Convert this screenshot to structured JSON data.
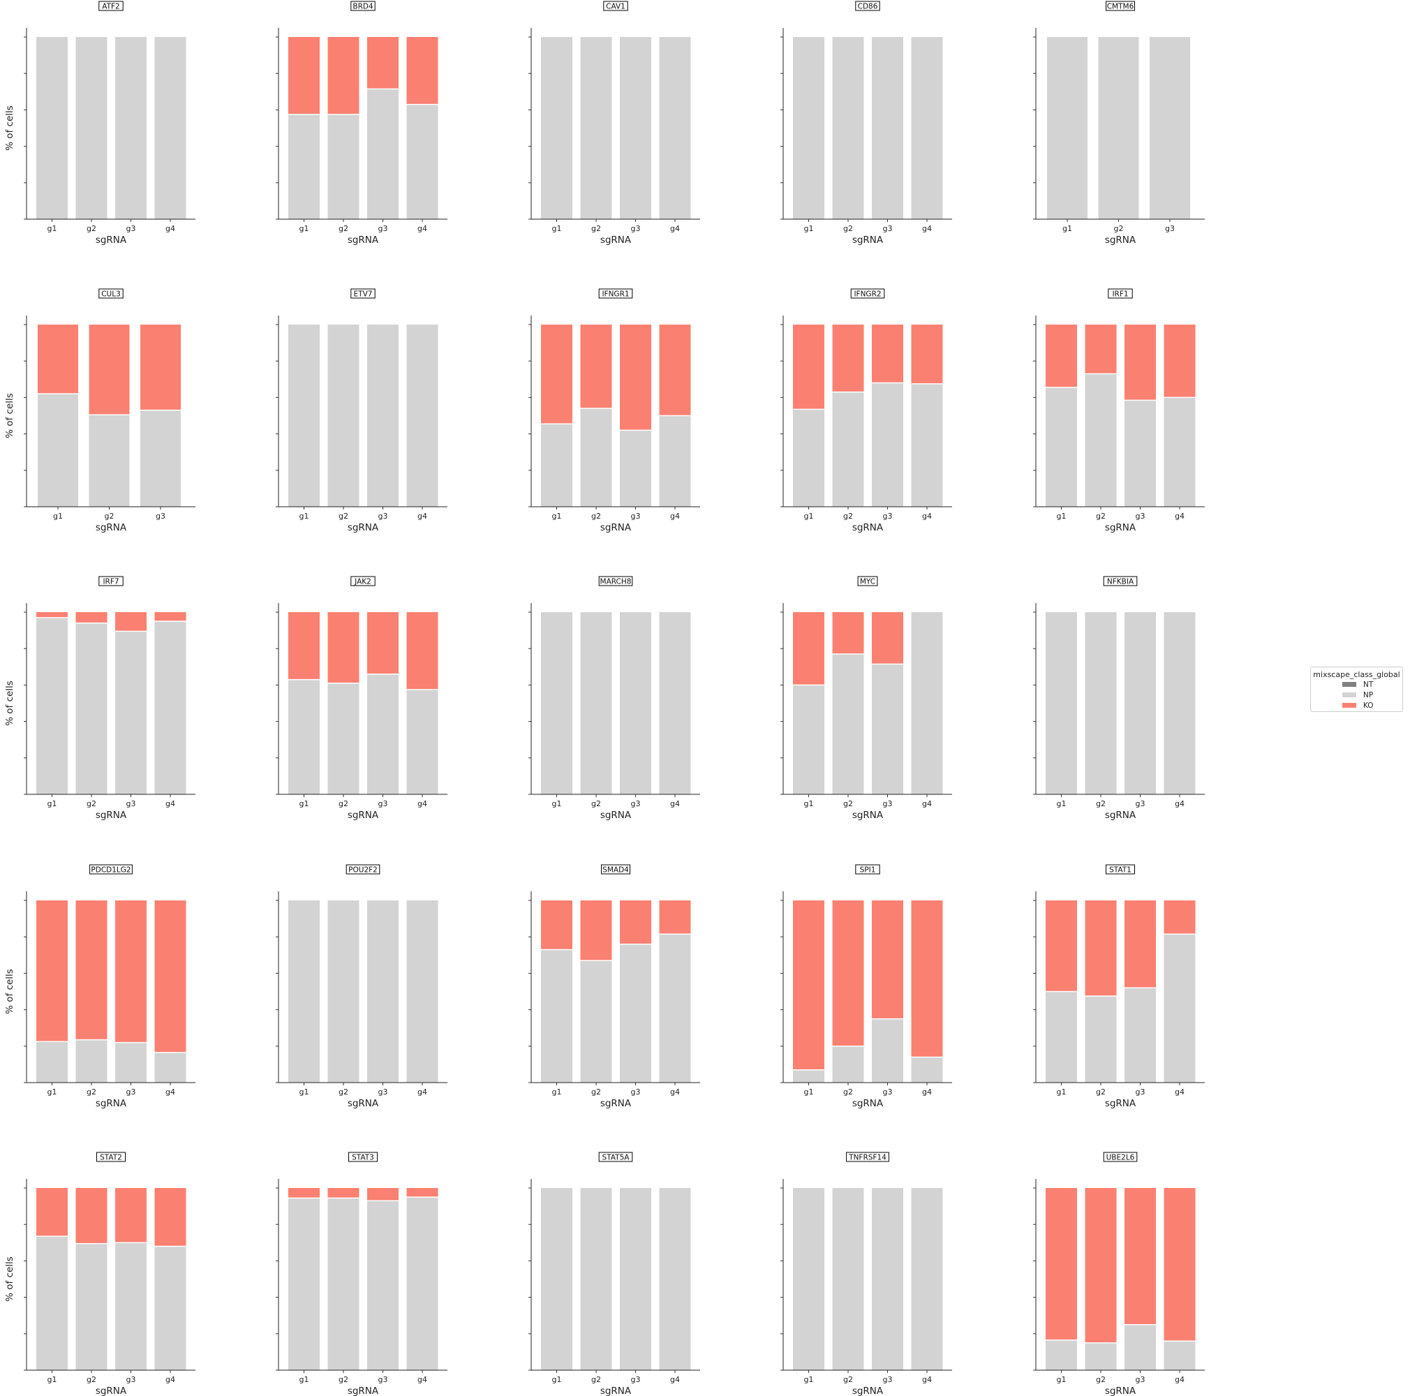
{
  "chart_data": {
    "type": "bar",
    "stacked": true,
    "layout": "5x5 grid of small multiples",
    "ylabel": "% of cells",
    "xlabel": "sgRNA",
    "ylim": [
      0,
      100
    ],
    "y_tick_labels": "hidden",
    "grid": false,
    "legend": {
      "title": "mixscape_class_global",
      "placement": "right, outside plots",
      "entries": [
        {
          "name": "NT",
          "color": "#808080"
        },
        {
          "name": "NP",
          "color": "#d3d3d3"
        },
        {
          "name": "KO",
          "color": "#fa8072"
        }
      ]
    },
    "panels": [
      {
        "title": "ATF2",
        "categories": [
          "g1",
          "g2",
          "g3",
          "g4"
        ],
        "np": [
          100,
          100,
          100,
          100
        ],
        "ko": [
          0,
          0,
          0,
          0
        ]
      },
      {
        "title": "BRD4",
        "categories": [
          "g1",
          "g2",
          "g3",
          "g4"
        ],
        "np": [
          57.5,
          57.5,
          71.5,
          63
        ],
        "ko": [
          42.5,
          42.5,
          28.5,
          37
        ]
      },
      {
        "title": "CAV1",
        "categories": [
          "g1",
          "g2",
          "g3",
          "g4"
        ],
        "np": [
          100,
          100,
          100,
          100
        ],
        "ko": [
          0,
          0,
          0,
          0
        ]
      },
      {
        "title": "CD86",
        "categories": [
          "g1",
          "g2",
          "g3",
          "g4"
        ],
        "np": [
          100,
          100,
          100,
          100
        ],
        "ko": [
          0,
          0,
          0,
          0
        ]
      },
      {
        "title": "CMTM6",
        "categories": [
          "g1",
          "g2",
          "g3"
        ],
        "np": [
          100,
          100,
          100
        ],
        "ko": [
          0,
          0,
          0
        ]
      },
      {
        "title": "CUL3",
        "categories": [
          "g1",
          "g2",
          "g3"
        ],
        "np": [
          62,
          50.5,
          53
        ],
        "ko": [
          38,
          49.5,
          47
        ]
      },
      {
        "title": "ETV7",
        "categories": [
          "g1",
          "g2",
          "g3",
          "g4"
        ],
        "np": [
          100,
          100,
          100,
          100
        ],
        "ko": [
          0,
          0,
          0,
          0
        ]
      },
      {
        "title": "IFNGR1",
        "categories": [
          "g1",
          "g2",
          "g3",
          "g4"
        ],
        "np": [
          45.5,
          54,
          42,
          50
        ],
        "ko": [
          54.5,
          46,
          58,
          50
        ]
      },
      {
        "title": "IFNGR2",
        "categories": [
          "g1",
          "g2",
          "g3",
          "g4"
        ],
        "np": [
          53.5,
          63,
          68,
          67.5
        ],
        "ko": [
          46.5,
          37,
          32,
          32.5
        ]
      },
      {
        "title": "IRF1",
        "categories": [
          "g1",
          "g2",
          "g3",
          "g4"
        ],
        "np": [
          65.5,
          73,
          58.5,
          60
        ],
        "ko": [
          34.5,
          27,
          41.5,
          40
        ]
      },
      {
        "title": "IRF7",
        "categories": [
          "g1",
          "g2",
          "g3",
          "g4"
        ],
        "np": [
          97,
          94,
          89.5,
          95
        ],
        "ko": [
          3,
          6,
          10.5,
          5
        ]
      },
      {
        "title": "JAK2",
        "categories": [
          "g1",
          "g2",
          "g3",
          "g4"
        ],
        "np": [
          63,
          61,
          66,
          57.5
        ],
        "ko": [
          37,
          39,
          34,
          42.5
        ]
      },
      {
        "title": "MARCH8",
        "categories": [
          "g1",
          "g2",
          "g3",
          "g4"
        ],
        "np": [
          100,
          100,
          100,
          100
        ],
        "ko": [
          0,
          0,
          0,
          0
        ]
      },
      {
        "title": "MYC",
        "categories": [
          "g1",
          "g2",
          "g3",
          "g4"
        ],
        "np": [
          60,
          77,
          71.5,
          100
        ],
        "ko": [
          40,
          23,
          28.5,
          0
        ]
      },
      {
        "title": "NFKBIA",
        "categories": [
          "g1",
          "g2",
          "g3",
          "g4"
        ],
        "np": [
          100,
          100,
          100,
          100
        ],
        "ko": [
          0,
          0,
          0,
          0
        ]
      },
      {
        "title": "PDCD1LG2",
        "categories": [
          "g1",
          "g2",
          "g3",
          "g4"
        ],
        "np": [
          22.5,
          23.5,
          22,
          16.5
        ],
        "ko": [
          77.5,
          76.5,
          78,
          83.5
        ]
      },
      {
        "title": "POU2F2",
        "categories": [
          "g1",
          "g2",
          "g3",
          "g4"
        ],
        "np": [
          100,
          100,
          100,
          100
        ],
        "ko": [
          0,
          0,
          0,
          0
        ]
      },
      {
        "title": "SMAD4",
        "categories": [
          "g1",
          "g2",
          "g3",
          "g4"
        ],
        "np": [
          73,
          67,
          76,
          81.5
        ],
        "ko": [
          27,
          33,
          24,
          18.5
        ]
      },
      {
        "title": "SPI1",
        "categories": [
          "g1",
          "g2",
          "g3",
          "g4"
        ],
        "np": [
          7,
          20,
          35,
          14
        ],
        "ko": [
          93,
          80,
          65,
          86
        ]
      },
      {
        "title": "STAT1",
        "categories": [
          "g1",
          "g2",
          "g3",
          "g4"
        ],
        "np": [
          50,
          47.5,
          52,
          81.5
        ],
        "ko": [
          50,
          52.5,
          48,
          18.5
        ]
      },
      {
        "title": "STAT2",
        "categories": [
          "g1",
          "g2",
          "g3",
          "g4"
        ],
        "np": [
          73.5,
          69.5,
          70,
          68
        ],
        "ko": [
          26.5,
          30.5,
          30,
          32
        ]
      },
      {
        "title": "STAT3",
        "categories": [
          "g1",
          "g2",
          "g3",
          "g4"
        ],
        "np": [
          94.5,
          94.5,
          93,
          95
        ],
        "ko": [
          5.5,
          5.5,
          7,
          5
        ]
      },
      {
        "title": "STAT5A",
        "categories": [
          "g1",
          "g2",
          "g3",
          "g4"
        ],
        "np": [
          100,
          100,
          100,
          100
        ],
        "ko": [
          0,
          0,
          0,
          0
        ]
      },
      {
        "title": "TNFRSF14",
        "categories": [
          "g1",
          "g2",
          "g3",
          "g4"
        ],
        "np": [
          100,
          100,
          100,
          100
        ],
        "ko": [
          0,
          0,
          0,
          0
        ]
      },
      {
        "title": "UBE2L6",
        "categories": [
          "g1",
          "g2",
          "g3",
          "g4"
        ],
        "np": [
          16.5,
          15,
          25,
          16
        ],
        "ko": [
          83.5,
          85,
          75,
          84
        ]
      }
    ]
  }
}
